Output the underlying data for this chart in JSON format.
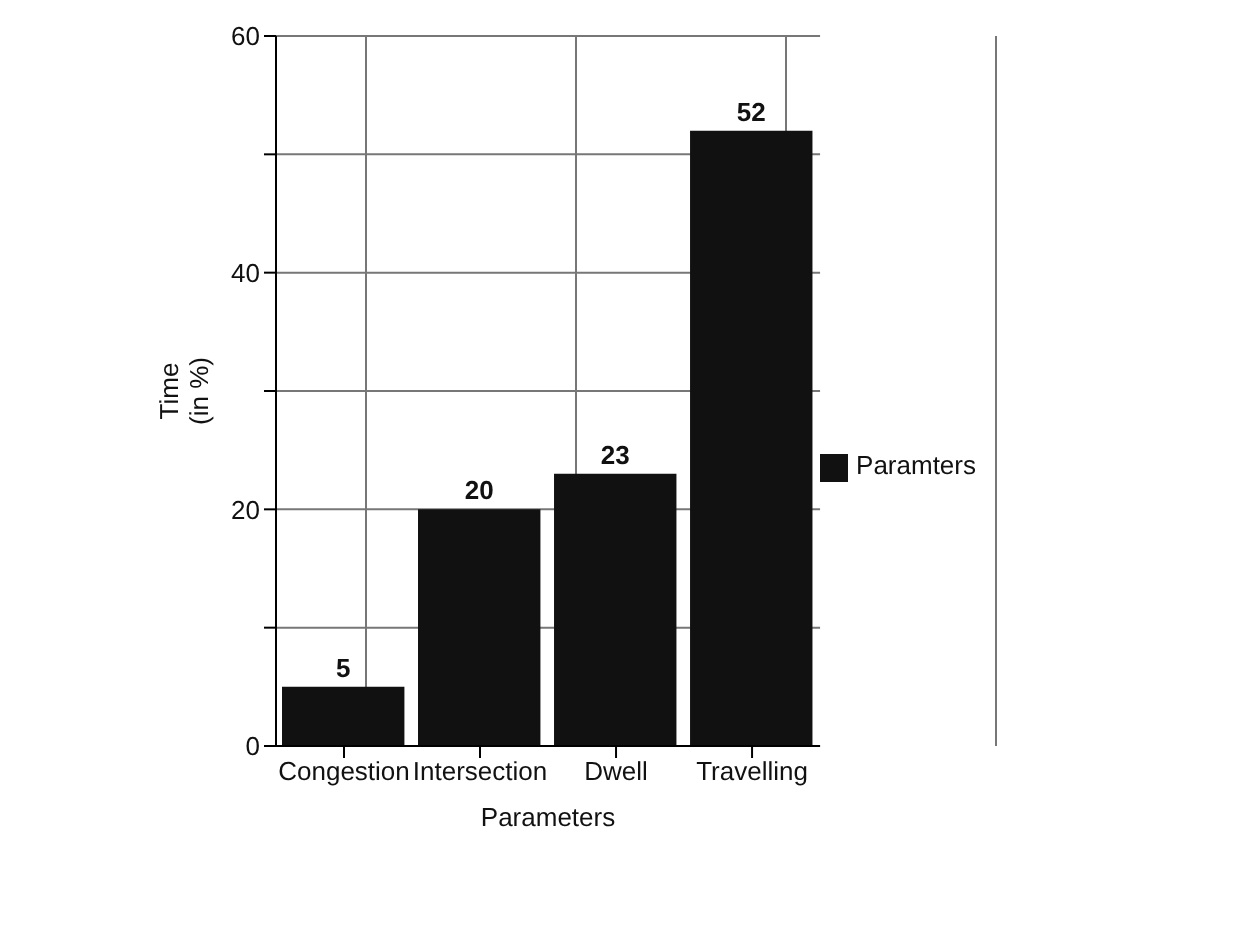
{
  "chart_data": {
    "type": "bar",
    "xlabel": "Parameters",
    "ylabel": "Time (in %)",
    "categories": [
      "Congestion",
      "Intersection",
      "Dwell",
      "Travelling"
    ],
    "series": [
      {
        "name": "Paramters",
        "color": "#111111",
        "values": [
          5,
          20,
          23,
          52
        ]
      }
    ],
    "ylim": [
      0,
      60
    ],
    "yticks": [
      0,
      {
        "value": 10,
        "label": null
      },
      20,
      {
        "value": 30,
        "label": null
      },
      40,
      {
        "value": 50,
        "label": null
      },
      60
    ],
    "grid": true,
    "legend": "right",
    "data_labels": true
  }
}
